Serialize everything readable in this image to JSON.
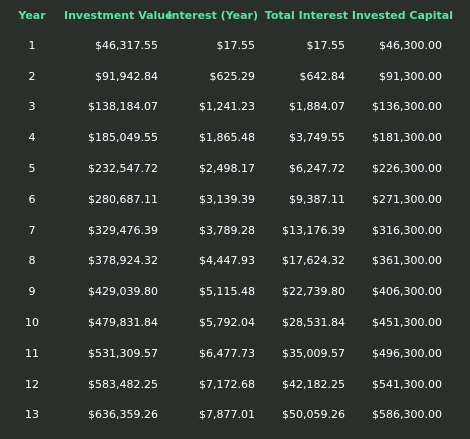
{
  "table": {
    "headers": {
      "year": "Year",
      "investment_value": "Investment Value",
      "interest_year": "Interest (Year)",
      "total_interest": "Total Interest",
      "invested_capital": "Invested Capital"
    },
    "rows": [
      {
        "year": "1",
        "investment_value": "$46,317.55",
        "interest_year": "$17.55",
        "total_interest": "$17.55",
        "invested_capital": "$46,300.00"
      },
      {
        "year": "2",
        "investment_value": "$91,942.84",
        "interest_year": "$625.29",
        "total_interest": "$642.84",
        "invested_capital": "$91,300.00"
      },
      {
        "year": "3",
        "investment_value": "$138,184.07",
        "interest_year": "$1,241.23",
        "total_interest": "$1,884.07",
        "invested_capital": "$136,300.00"
      },
      {
        "year": "4",
        "investment_value": "$185,049.55",
        "interest_year": "$1,865.48",
        "total_interest": "$3,749.55",
        "invested_capital": "$181,300.00"
      },
      {
        "year": "5",
        "investment_value": "$232,547.72",
        "interest_year": "$2,498.17",
        "total_interest": "$6,247.72",
        "invested_capital": "$226,300.00"
      },
      {
        "year": "6",
        "investment_value": "$280,687.11",
        "interest_year": "$3,139.39",
        "total_interest": "$9,387.11",
        "invested_capital": "$271,300.00"
      },
      {
        "year": "7",
        "investment_value": "$329,476.39",
        "interest_year": "$3,789.28",
        "total_interest": "$13,176.39",
        "invested_capital": "$316,300.00"
      },
      {
        "year": "8",
        "investment_value": "$378,924.32",
        "interest_year": "$4,447.93",
        "total_interest": "$17,624.32",
        "invested_capital": "$361,300.00"
      },
      {
        "year": "9",
        "investment_value": "$429,039.80",
        "interest_year": "$5,115.48",
        "total_interest": "$22,739.80",
        "invested_capital": "$406,300.00"
      },
      {
        "year": "10",
        "investment_value": "$479,831.84",
        "interest_year": "$5,792.04",
        "total_interest": "$28,531.84",
        "invested_capital": "$451,300.00"
      },
      {
        "year": "11",
        "investment_value": "$531,309.57",
        "interest_year": "$6,477.73",
        "total_interest": "$35,009.57",
        "invested_capital": "$496,300.00"
      },
      {
        "year": "12",
        "investment_value": "$583,482.25",
        "interest_year": "$7,172.68",
        "total_interest": "$42,182.25",
        "invested_capital": "$541,300.00"
      },
      {
        "year": "13",
        "investment_value": "$636,359.26",
        "interest_year": "$7,877.01",
        "total_interest": "$50,059.26",
        "invested_capital": "$586,300.00"
      }
    ]
  },
  "colors": {
    "background": "#2b2f2c",
    "header_text": "#57e6a2",
    "cell_text": "#ffffff"
  }
}
